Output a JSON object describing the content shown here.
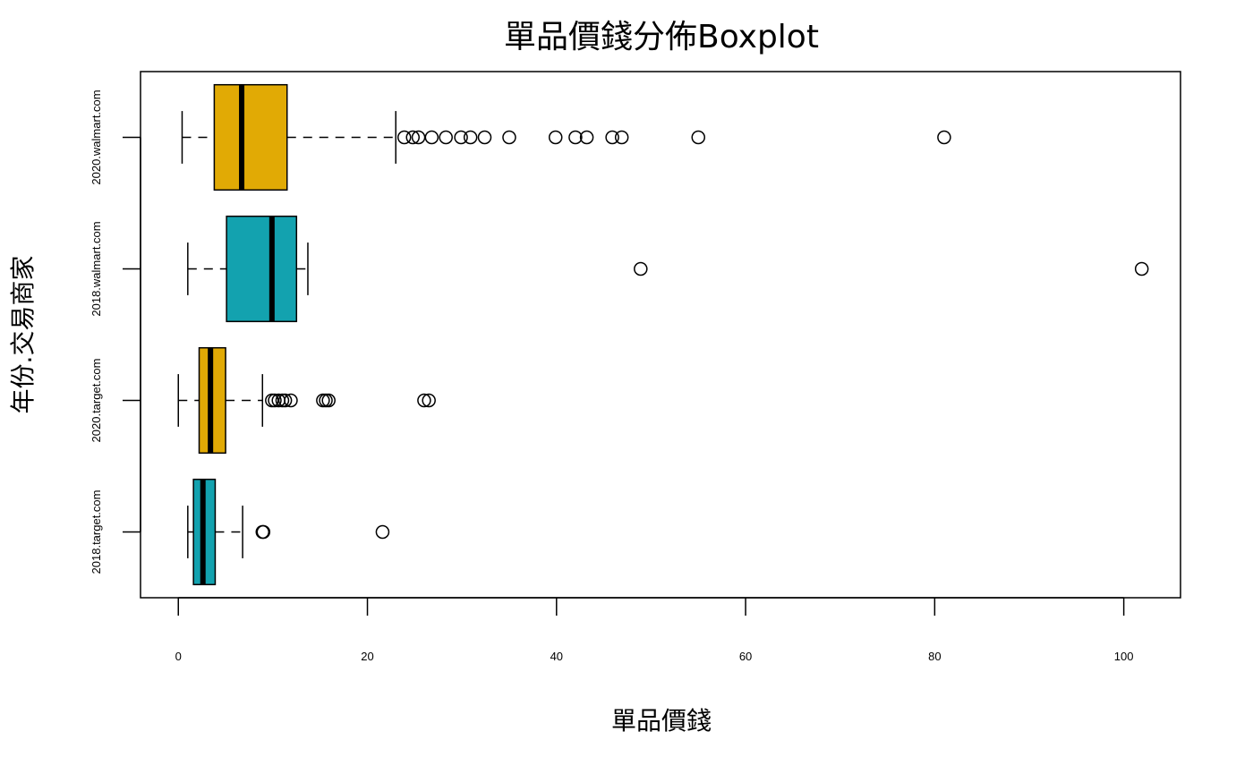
{
  "chart_data": {
    "type": "boxplot",
    "orientation": "horizontal",
    "title": "單品價錢分佈Boxplot",
    "xlabel": "單品價錢",
    "ylabel": "年份.交易商家",
    "xlim": [
      -4,
      106
    ],
    "x_ticks": [
      0,
      20,
      40,
      60,
      80,
      100
    ],
    "grid": false,
    "legend": "none",
    "colors": {
      "fill_a": "#E1AA05",
      "fill_b": "#13A2AF",
      "stroke": "#000000"
    },
    "series": [
      {
        "name": "2018.target.com",
        "fill": "#13A2AF",
        "whisker_low": 1.0,
        "q1": 1.6,
        "median": 2.6,
        "q3": 3.9,
        "whisker_high": 6.8,
        "outliers": [
          8.9,
          9.0,
          21.6
        ]
      },
      {
        "name": "2020.target.com",
        "fill": "#E1AA05",
        "whisker_low": 0.0,
        "q1": 2.2,
        "median": 3.4,
        "q3": 5.0,
        "whisker_high": 8.9,
        "outliers": [
          9.9,
          10.2,
          10.6,
          11.0,
          11.3,
          11.9,
          15.3,
          15.6,
          15.9,
          26.0,
          26.5
        ]
      },
      {
        "name": "2018.walmart.com",
        "fill": "#13A2AF",
        "whisker_low": 1.0,
        "q1": 5.1,
        "median": 9.9,
        "q3": 12.5,
        "whisker_high": 13.7,
        "outliers": [
          48.9,
          101.9
        ]
      },
      {
        "name": "2020.walmart.com",
        "fill": "#E1AA05",
        "whisker_low": 0.4,
        "q1": 3.8,
        "median": 6.7,
        "q3": 11.5,
        "whisker_high": 23.0,
        "outliers": [
          23.9,
          24.8,
          25.4,
          26.8,
          28.3,
          29.9,
          30.9,
          32.4,
          35.0,
          39.9,
          42.0,
          43.2,
          45.9,
          46.9,
          55.0,
          81.0
        ]
      }
    ]
  }
}
